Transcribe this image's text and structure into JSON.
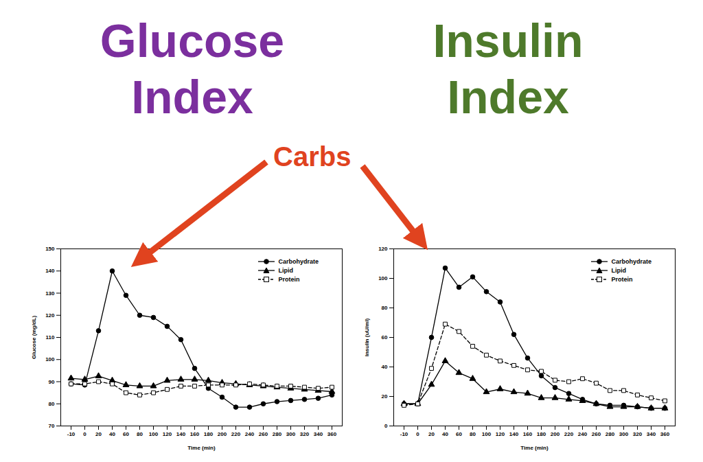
{
  "annotation": "Carbs",
  "chart_data": [
    {
      "type": "line",
      "title": "Glucose Index",
      "x_label": "Time (min)",
      "y_label": "Glucose (mg/dL)",
      "categories": [
        -10,
        0,
        20,
        40,
        60,
        80,
        100,
        120,
        140,
        160,
        180,
        200,
        220,
        240,
        260,
        280,
        300,
        320,
        340,
        360
      ],
      "series": [
        {
          "name": "Carbohydrate",
          "color": "#000000",
          "marker": "circle",
          "line_style": "solid",
          "values": [
            89,
            88.5,
            113,
            140,
            129,
            120,
            119,
            115,
            109,
            96,
            87,
            83,
            78.5,
            78.5,
            80,
            81,
            81.5,
            82,
            82.5,
            84
          ]
        },
        {
          "name": "Lipid",
          "color": "#000000",
          "marker": "triangle",
          "line_style": "solid",
          "values": [
            91.5,
            91,
            92.5,
            90.5,
            88.5,
            88,
            88,
            90.5,
            91,
            91,
            90.5,
            89.5,
            89,
            88.5,
            88,
            87.5,
            87,
            86.5,
            86,
            85.5
          ]
        },
        {
          "name": "Protein",
          "color": "#000000",
          "marker": "open_square",
          "line_style": "dashed",
          "values": [
            89,
            89,
            90,
            89,
            85,
            84,
            85,
            86.5,
            88,
            88,
            88.5,
            88.5,
            88.5,
            89,
            88.5,
            88,
            88,
            87.5,
            87,
            87.5
          ]
        }
      ],
      "ylim": [
        70,
        150
      ],
      "yticks": [
        70,
        80,
        90,
        100,
        110,
        120,
        130,
        140,
        150
      ],
      "legend": "top-right",
      "grid": false
    },
    {
      "type": "line",
      "title": "Insulin Index",
      "x_label": "Time (min)",
      "y_label": "Insulin (uU/ml)",
      "categories": [
        -10,
        0,
        20,
        40,
        60,
        80,
        100,
        120,
        140,
        160,
        180,
        200,
        220,
        240,
        260,
        280,
        300,
        320,
        340,
        360
      ],
      "series": [
        {
          "name": "Carbohydrate",
          "color": "#000000",
          "marker": "circle",
          "line_style": "solid",
          "values": [
            15,
            15,
            60,
            107,
            94,
            101,
            91,
            84,
            62,
            46,
            34,
            26,
            22,
            18,
            15,
            14,
            14,
            13,
            12,
            12
          ]
        },
        {
          "name": "Lipid",
          "color": "#000000",
          "marker": "triangle",
          "line_style": "solid",
          "values": [
            15,
            15,
            28,
            44,
            36,
            32,
            23,
            25,
            23,
            22,
            19,
            19,
            18,
            17,
            15,
            13,
            13,
            13,
            12,
            12
          ]
        },
        {
          "name": "Protein",
          "color": "#000000",
          "marker": "open_square",
          "line_style": "dashed",
          "values": [
            14,
            15,
            39,
            69,
            64,
            54,
            48,
            44,
            41,
            38,
            37,
            31,
            30,
            32,
            29,
            24,
            24,
            21,
            19,
            17
          ]
        }
      ],
      "ylim": [
        0,
        120
      ],
      "yticks": [
        0,
        20,
        40,
        60,
        80,
        100,
        120
      ],
      "legend": "top-right",
      "grid": false
    }
  ]
}
